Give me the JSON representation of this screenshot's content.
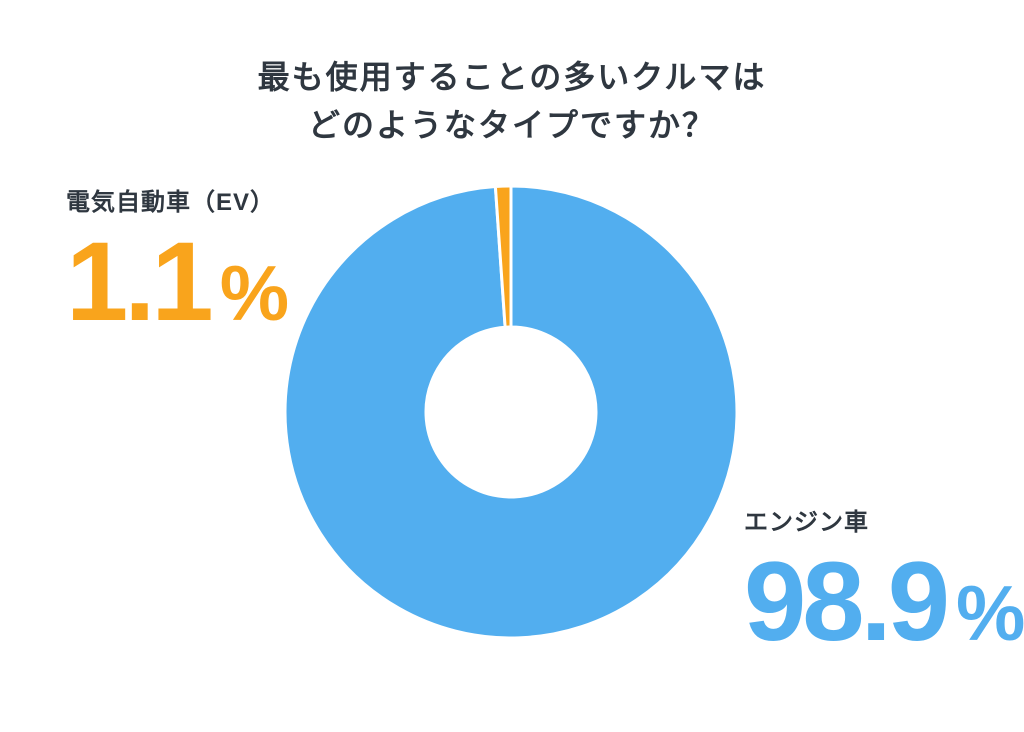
{
  "page": {
    "background_color": "#FFFFFF"
  },
  "title": {
    "line1": "最も使用することの多いクルマは",
    "line2": "どのようなタイプですか？",
    "color": "#2F3740"
  },
  "chart_data": {
    "type": "pie",
    "style": "donut",
    "title": "最も使用することの多いクルマは どのようなタイプですか？",
    "unit": "%",
    "categories": [
      "エンジン車",
      "電気自動車（EV）"
    ],
    "values": [
      98.9,
      1.1
    ],
    "segments": [
      {
        "key": "engine",
        "label": "エンジン車",
        "value": 98.9,
        "display_value": "98.9",
        "color": "#52AEEF"
      },
      {
        "key": "ev",
        "label": "電気自動車（EV）",
        "value": 1.1,
        "display_value": "1.1",
        "color": "#F9A41C"
      }
    ],
    "start_angle_deg": 0,
    "direction": "clockwise",
    "donut_hole_ratio": 0.376,
    "separator_color": "#FFFFFF",
    "label_text_color": "#2F3740",
    "legend_position": "callouts-beside-chart",
    "grid": false
  }
}
